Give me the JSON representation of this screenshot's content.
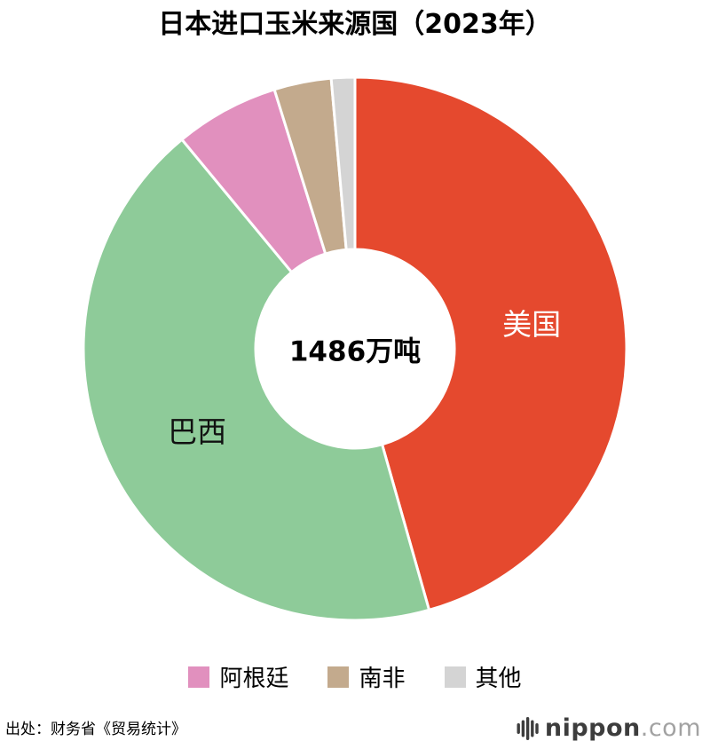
{
  "chart_data": {
    "type": "donut",
    "title": "日本进口玉米来源国（2023年）",
    "center_label": "1486万吨",
    "total_value": 1486,
    "unit": "万吨",
    "start_angle_deg": 0,
    "direction": "clockwise",
    "donut_hole_ratio": 0.37,
    "legend_position": "bottom",
    "segments": [
      {
        "id": "usa",
        "label": "美国",
        "share_pct": 45.6,
        "color": "#e5492e",
        "label_color": "#ffffff",
        "label_inside": true
      },
      {
        "id": "brazil",
        "label": "巴西",
        "share_pct": 43.4,
        "color": "#8ecb99",
        "label_color": "#111111",
        "label_inside": true
      },
      {
        "id": "argentina",
        "label": "阿根廷",
        "share_pct": 6.2,
        "color": "#e190be",
        "label_inside": false
      },
      {
        "id": "south-africa",
        "label": "南非",
        "share_pct": 3.4,
        "color": "#c3aa8d",
        "label_inside": false
      },
      {
        "id": "others",
        "label": "其他",
        "share_pct": 1.4,
        "color": "#d4d4d4",
        "label_inside": false
      }
    ]
  },
  "footer": {
    "source": "出处：财务省《贸易统计》",
    "brand_name": "nippon",
    "brand_tld": ".com"
  }
}
